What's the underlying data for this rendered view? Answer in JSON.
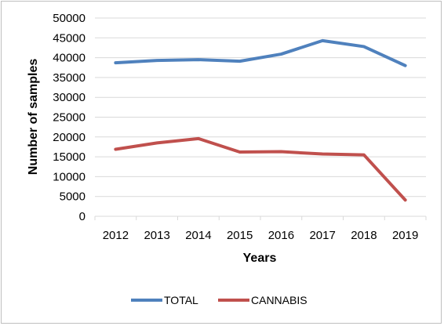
{
  "chart_data": {
    "type": "line",
    "title": "",
    "xlabel": "Years",
    "ylabel": "Number of samples",
    "categories": [
      "2012",
      "2013",
      "2014",
      "2015",
      "2016",
      "2017",
      "2018",
      "2019"
    ],
    "ylim": [
      0,
      50000
    ],
    "yticks": [
      0,
      5000,
      10000,
      15000,
      20000,
      25000,
      30000,
      35000,
      40000,
      45000,
      50000
    ],
    "grid": true,
    "legend_position": "bottom",
    "series": [
      {
        "name": "TOTAL",
        "color": "#4f81bd",
        "values": [
          38700,
          39300,
          39500,
          39100,
          40900,
          44300,
          42800,
          38000
        ]
      },
      {
        "name": "CANNABIS",
        "color": "#c0504d",
        "values": [
          16900,
          18500,
          19600,
          16200,
          16300,
          15700,
          15500,
          4100
        ]
      }
    ]
  }
}
